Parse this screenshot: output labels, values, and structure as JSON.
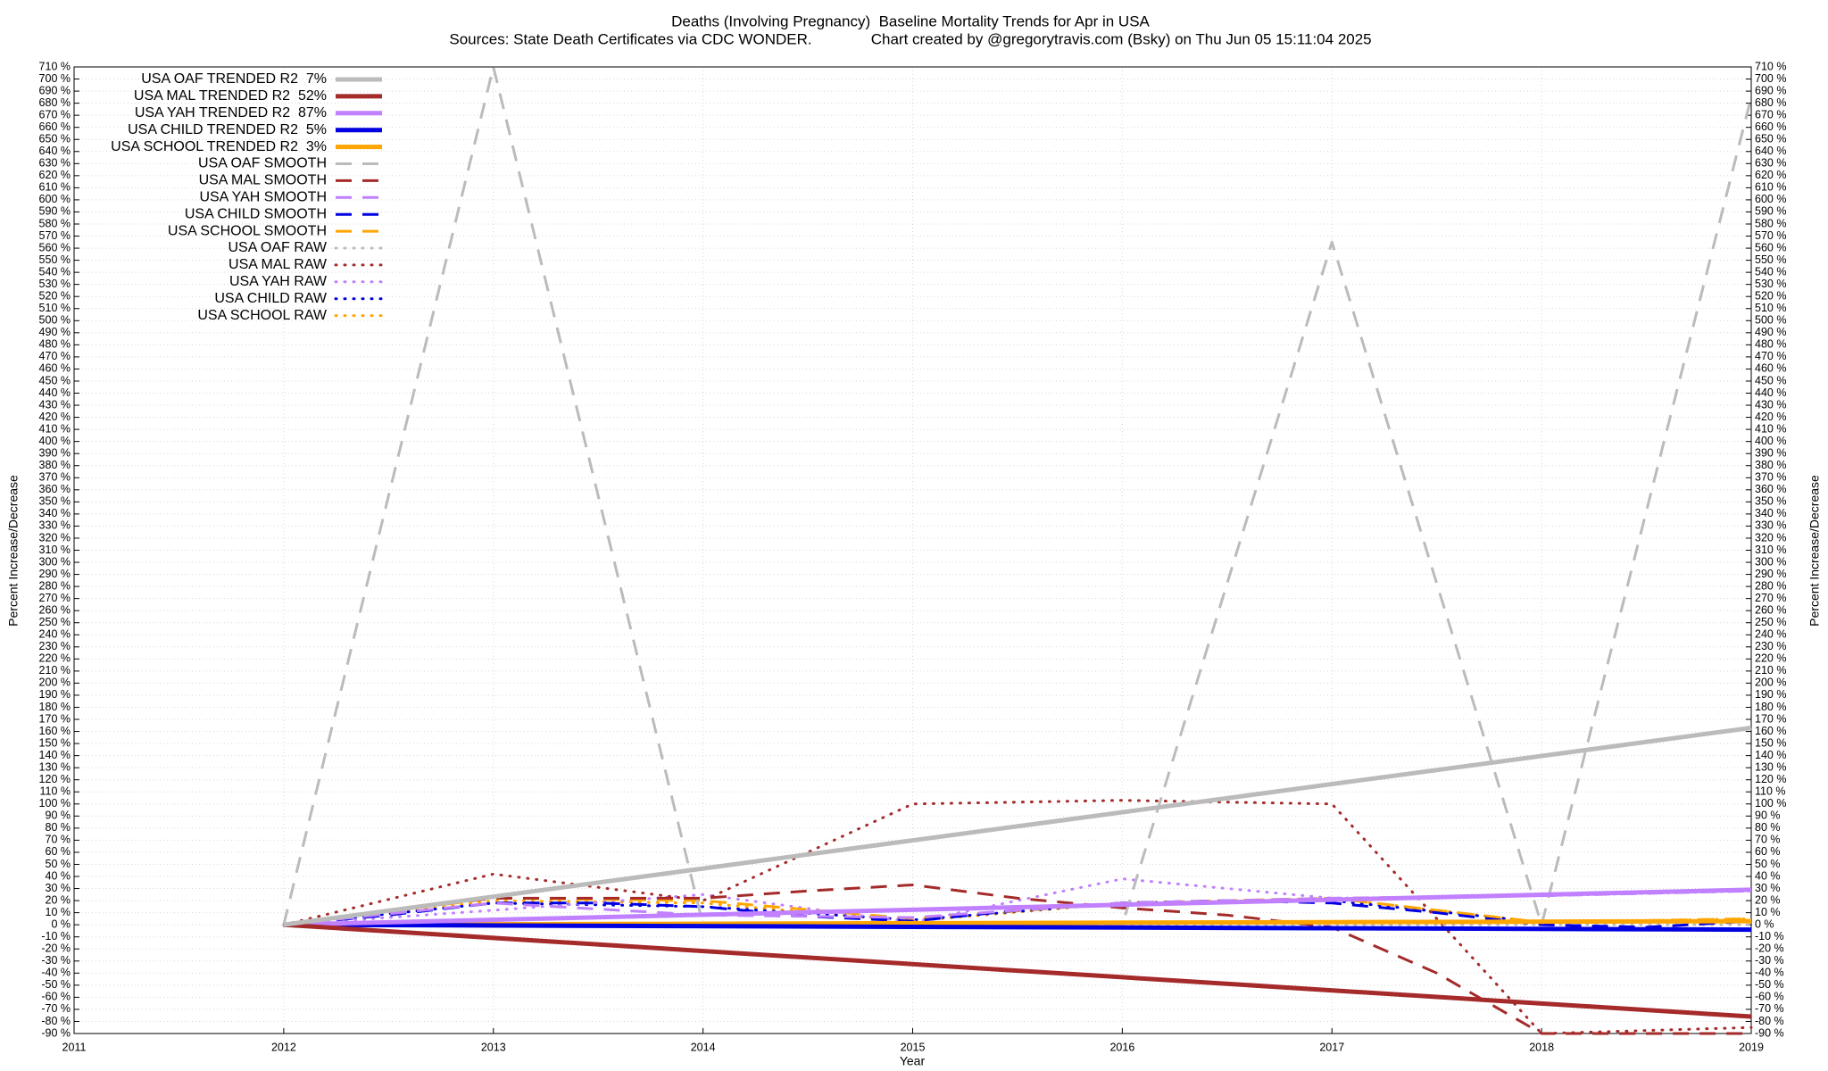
{
  "chart_data": {
    "type": "line",
    "title": "Deaths (Involving Pregnancy)  Baseline Mortality Trends for Apr in USA",
    "subtitle": "Sources: State Death Certificates via CDC WONDER.              Chart created by @gregorytravis.com (Bsky) on Thu Jun 05 15:11:04 2025",
    "x_label": "Year",
    "y_label": "Percent Increase/Decrease",
    "grid": true,
    "legend": "top-left",
    "xlim": [
      2011,
      2019
    ],
    "xticks": [
      2011,
      2012,
      2013,
      2014,
      2015,
      2016,
      2017,
      2018,
      2019
    ],
    "ylim": [
      -90,
      710
    ],
    "yticks": [
      {
        "value": 710,
        "label": "710 %"
      },
      {
        "value": 700,
        "label": "700 %"
      },
      {
        "value": 690,
        "label": "690 %"
      },
      {
        "value": 680,
        "label": "680 %"
      },
      {
        "value": 670,
        "label": "670 %"
      },
      {
        "value": 660,
        "label": "660 %"
      },
      {
        "value": 650,
        "label": "650 %"
      },
      {
        "value": 640,
        "label": "640 %"
      },
      {
        "value": 630,
        "label": "630 %"
      },
      {
        "value": 620,
        "label": "620 %"
      },
      {
        "value": 610,
        "label": "610 %"
      },
      {
        "value": 600,
        "label": "600 %"
      },
      {
        "value": 590,
        "label": "590 %"
      },
      {
        "value": 580,
        "label": "580 %"
      },
      {
        "value": 570,
        "label": "570 %"
      },
      {
        "value": 560,
        "label": "560 %"
      },
      {
        "value": 550,
        "label": "550 %"
      },
      {
        "value": 540,
        "label": "540 %"
      },
      {
        "value": 530,
        "label": "530 %"
      },
      {
        "value": 520,
        "label": "520 %"
      },
      {
        "value": 510,
        "label": "510 %"
      },
      {
        "value": 500,
        "label": "500 %"
      },
      {
        "value": 490,
        "label": "490 %"
      },
      {
        "value": 480,
        "label": "480 %"
      },
      {
        "value": 470,
        "label": "470 %"
      },
      {
        "value": 460,
        "label": "460 %"
      },
      {
        "value": 450,
        "label": "450 %"
      },
      {
        "value": 440,
        "label": "440 %"
      },
      {
        "value": 430,
        "label": "430 %"
      },
      {
        "value": 420,
        "label": "420 %"
      },
      {
        "value": 410,
        "label": "410 %"
      },
      {
        "value": 400,
        "label": "400 %"
      },
      {
        "value": 390,
        "label": "390 %"
      },
      {
        "value": 380,
        "label": "380 %"
      },
      {
        "value": 370,
        "label": "370 %"
      },
      {
        "value": 360,
        "label": "360 %"
      },
      {
        "value": 350,
        "label": "350 %"
      },
      {
        "value": 340,
        "label": "340 %"
      },
      {
        "value": 330,
        "label": "330 %"
      },
      {
        "value": 320,
        "label": "320 %"
      },
      {
        "value": 310,
        "label": "310 %"
      },
      {
        "value": 300,
        "label": "300 %"
      },
      {
        "value": 290,
        "label": "290 %"
      },
      {
        "value": 280,
        "label": "280 %"
      },
      {
        "value": 270,
        "label": "270 %"
      },
      {
        "value": 260,
        "label": "260 %"
      },
      {
        "value": 250,
        "label": "250 %"
      },
      {
        "value": 240,
        "label": "240 %"
      },
      {
        "value": 230,
        "label": "230 %"
      },
      {
        "value": 220,
        "label": "220 %"
      },
      {
        "value": 210,
        "label": "210 %"
      },
      {
        "value": 200,
        "label": "200 %"
      },
      {
        "value": 190,
        "label": "190 %"
      },
      {
        "value": 180,
        "label": "180 %"
      },
      {
        "value": 170,
        "label": "170 %"
      },
      {
        "value": 160,
        "label": "160 %"
      },
      {
        "value": 150,
        "label": "150 %"
      },
      {
        "value": 140,
        "label": "140 %"
      },
      {
        "value": 130,
        "label": "130 %"
      },
      {
        "value": 120,
        "label": "120 %"
      },
      {
        "value": 110,
        "label": "110 %"
      },
      {
        "value": 100,
        "label": "100 %"
      },
      {
        "value": 90,
        "label": "90 %"
      },
      {
        "value": 80,
        "label": "80 %"
      },
      {
        "value": 70,
        "label": "70 %"
      },
      {
        "value": 60,
        "label": "60 %"
      },
      {
        "value": 50,
        "label": "50 %"
      },
      {
        "value": 40,
        "label": "40 %"
      },
      {
        "value": 30,
        "label": "30 %"
      },
      {
        "value": 20,
        "label": "20 %"
      },
      {
        "value": 10,
        "label": "10 %"
      },
      {
        "value": 0,
        "label": "0 %"
      },
      {
        "value": -10,
        "label": "-10 %"
      },
      {
        "value": -20,
        "label": "-20 %"
      },
      {
        "value": -30,
        "label": "-30 %"
      },
      {
        "value": -40,
        "label": "-40 %"
      },
      {
        "value": -50,
        "label": "-50 %"
      },
      {
        "value": -60,
        "label": "-60 %"
      },
      {
        "value": -70,
        "label": "-70 %"
      },
      {
        "value": -80,
        "label": "-80 %"
      },
      {
        "value": -90,
        "label": "-90 %"
      }
    ],
    "series": [
      {
        "name": "USA OAF TRENDED R2  7%",
        "color": "#bbbbbb",
        "style": "solid",
        "x": [
          2012,
          2019
        ],
        "values": [
          0,
          163
        ]
      },
      {
        "name": "USA MAL TRENDED R2  52%",
        "color": "#a52a2a",
        "style": "solid",
        "x": [
          2012,
          2019
        ],
        "values": [
          0,
          -76
        ]
      },
      {
        "name": "USA YAH TRENDED R2  87%",
        "color": "#c080ff",
        "style": "solid",
        "x": [
          2012,
          2019
        ],
        "values": [
          0,
          29
        ]
      },
      {
        "name": "USA CHILD TRENDED R2  5%",
        "color": "#0000e0",
        "style": "solid",
        "x": [
          2012,
          2019
        ],
        "values": [
          0,
          -4
        ]
      },
      {
        "name": "USA SCHOOL TRENDED R2  3%",
        "color": "#ffa500",
        "style": "solid",
        "x": [
          2012,
          2019
        ],
        "values": [
          0,
          3
        ]
      },
      {
        "name": "USA OAF SMOOTH",
        "color": "#bbbbbb",
        "style": "dashed",
        "x": [
          2012,
          2013,
          2014,
          2015,
          2016,
          2017,
          2018,
          2019
        ],
        "values": [
          0,
          710,
          0,
          0,
          0,
          565,
          0,
          685
        ]
      },
      {
        "name": "USA MAL SMOOTH",
        "color": "#a52a2a",
        "style": "dashed",
        "x": [
          2012,
          2012.5,
          2013,
          2013.5,
          2014,
          2014.5,
          2015,
          2015.5,
          2016,
          2016.5,
          2017,
          2017.5,
          2018,
          2018.5,
          2019
        ],
        "values": [
          0,
          12,
          22,
          22,
          22,
          28,
          33,
          22,
          14,
          8,
          -2,
          -40,
          -90,
          -90,
          -90
        ]
      },
      {
        "name": "USA YAH SMOOTH",
        "color": "#c080ff",
        "style": "dashed",
        "x": [
          2012,
          2013,
          2014,
          2015,
          2016,
          2017,
          2018,
          2019
        ],
        "values": [
          0,
          18,
          8,
          6,
          18,
          22,
          24,
          28
        ]
      },
      {
        "name": "USA CHILD SMOOTH",
        "color": "#0000e0",
        "style": "dashed",
        "x": [
          2012,
          2012.5,
          2013,
          2013.5,
          2014,
          2014.5,
          2015,
          2015.5,
          2016,
          2016.5,
          2017,
          2017.5,
          2018,
          2018.5,
          2019
        ],
        "values": [
          0,
          8,
          18,
          18,
          15,
          7,
          3,
          12,
          18,
          20,
          18,
          10,
          0,
          -2,
          3
        ]
      },
      {
        "name": "USA SCHOOL SMOOTH",
        "color": "#ffa500",
        "style": "dashed",
        "x": [
          2012,
          2013,
          2014,
          2015,
          2016,
          2017,
          2018,
          2019
        ],
        "values": [
          0,
          22,
          20,
          5,
          18,
          22,
          2,
          5
        ]
      },
      {
        "name": "USA OAF RAW",
        "color": "#bbbbbb",
        "style": "dotted",
        "x": [
          2012,
          2013,
          2014,
          2015,
          2016,
          2017,
          2018,
          2019
        ],
        "values": [
          0,
          0,
          0,
          0,
          0,
          0,
          0,
          0
        ]
      },
      {
        "name": "USA MAL RAW",
        "color": "#a52a2a",
        "style": "dotted",
        "x": [
          2012,
          2013,
          2014,
          2015,
          2016,
          2017,
          2018,
          2019
        ],
        "values": [
          0,
          42,
          20,
          100,
          103,
          100,
          -90,
          -85
        ]
      },
      {
        "name": "USA YAH RAW",
        "color": "#c080ff",
        "style": "dotted",
        "x": [
          2012,
          2013,
          2014,
          2015,
          2016,
          2017,
          2018,
          2019
        ],
        "values": [
          0,
          12,
          25,
          2,
          38,
          22,
          24,
          28
        ]
      },
      {
        "name": "USA CHILD RAW",
        "color": "#0000e0",
        "style": "dotted",
        "x": [
          2012,
          2013,
          2014,
          2015,
          2016,
          2017,
          2018,
          2019
        ],
        "values": [
          0,
          18,
          15,
          4,
          18,
          20,
          2,
          3
        ]
      },
      {
        "name": "USA SCHOOL RAW",
        "color": "#ffa500",
        "style": "dotted",
        "x": [
          2012,
          2013,
          2014,
          2015,
          2016,
          2017,
          2018,
          2019
        ],
        "values": [
          0,
          20,
          18,
          3,
          18,
          22,
          2,
          5
        ]
      }
    ]
  }
}
